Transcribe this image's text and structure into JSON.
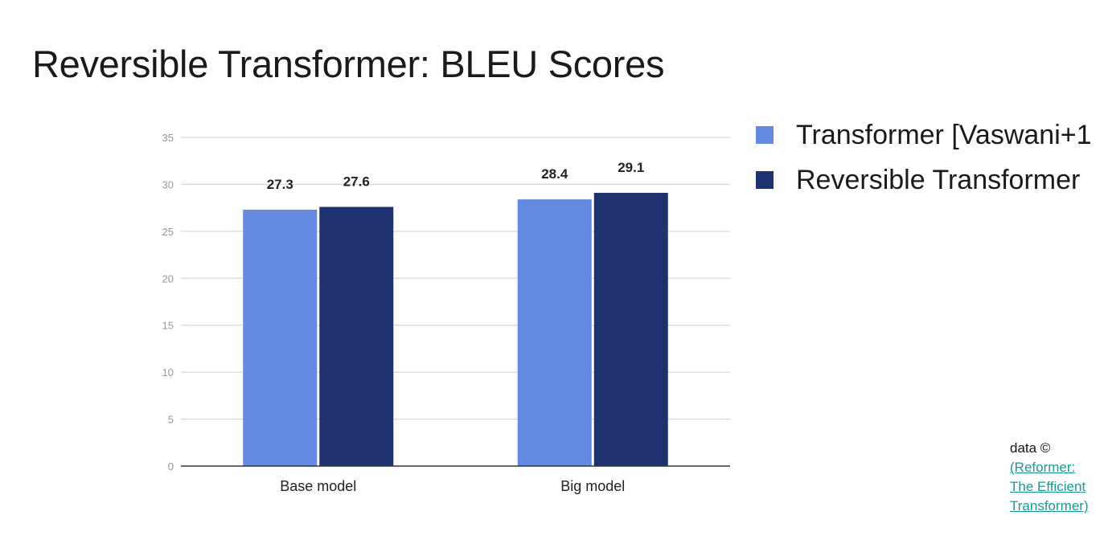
{
  "slide": {
    "title": "Reversible Transformer: BLEU Scores"
  },
  "citation": {
    "prefix": "data ©",
    "link_lines": [
      "(Reformer:",
      "The Efficient",
      "Transformer)"
    ]
  },
  "colors": {
    "series_1": "#6389e0",
    "series_2": "#1f3270",
    "grid": "#d9d9d9",
    "axis": "#333333",
    "tick_text": "#999999",
    "label_text": "#222222"
  },
  "chart_data": {
    "type": "bar",
    "categories": [
      "Base model",
      "Big model"
    ],
    "series": [
      {
        "name": "Transformer [Vaswani+1",
        "values": [
          27.3,
          28.4
        ]
      },
      {
        "name": "Reversible Transformer",
        "values": [
          27.6,
          29.1
        ]
      }
    ],
    "data_labels": [
      [
        "27.3",
        "28.4"
      ],
      [
        "27.6",
        "29.1"
      ]
    ],
    "yticks": [
      "0",
      "5",
      "10",
      "15",
      "20",
      "25",
      "30",
      "35"
    ],
    "ylim": [
      0,
      35
    ],
    "grid": true,
    "legend_position": "right"
  }
}
